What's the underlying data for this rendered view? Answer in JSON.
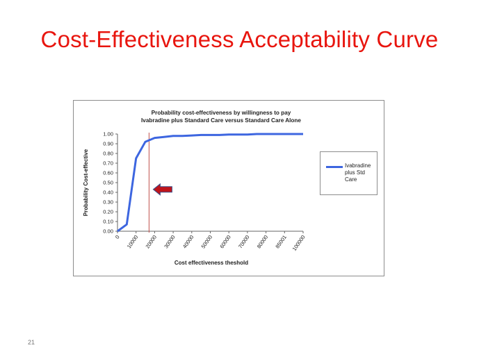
{
  "slide": {
    "title": "Cost-Effectiveness  Acceptability Curve",
    "number": "21"
  },
  "colors": {
    "title": "#e8150e",
    "series": "#3d66e0",
    "marker_line": "#c0504d",
    "arrow": "#c0141a"
  },
  "chart_data": {
    "type": "line",
    "title_lines": [
      "Probability cost-effectiveness by willingness to pay",
      "Ivabradine plus Standard Care versus Standard Care Alone"
    ],
    "xlabel": "Cost effectiveness  theshold",
    "ylabel": "Probability  Cost-effective",
    "categories": [
      "0",
      "10000",
      "20000",
      "30000",
      "40000",
      "50000",
      "60000",
      "70000",
      "80000",
      "85001",
      "100000"
    ],
    "x": [
      0,
      5000,
      10000,
      15000,
      20000,
      25000,
      30000,
      35000,
      40000,
      45000,
      50000,
      55000,
      60000,
      65000,
      70000,
      75000,
      80000,
      85001,
      90000,
      95000,
      100000
    ],
    "series": [
      {
        "name": "Ivabradine plus Std Care",
        "values": [
          0.0,
          0.07,
          0.75,
          0.92,
          0.96,
          0.97,
          0.98,
          0.98,
          0.985,
          0.99,
          0.99,
          0.99,
          0.995,
          0.995,
          0.995,
          1.0,
          1.0,
          1.0,
          1.0,
          1.0,
          1.0
        ]
      }
    ],
    "yticks": [
      "0.00",
      "0.10",
      "0.20",
      "0.30",
      "0.40",
      "0.50",
      "0.60",
      "0.70",
      "0.80",
      "0.90",
      "1.00"
    ],
    "ylim": [
      0,
      1
    ],
    "xlim": [
      0,
      100000
    ],
    "reference_line_x": 17000,
    "arrow_annotation": {
      "points": "left",
      "y": 0.43
    },
    "legend": {
      "position": "right",
      "label": "Ivabradine plus Std Care"
    },
    "grid": false
  }
}
